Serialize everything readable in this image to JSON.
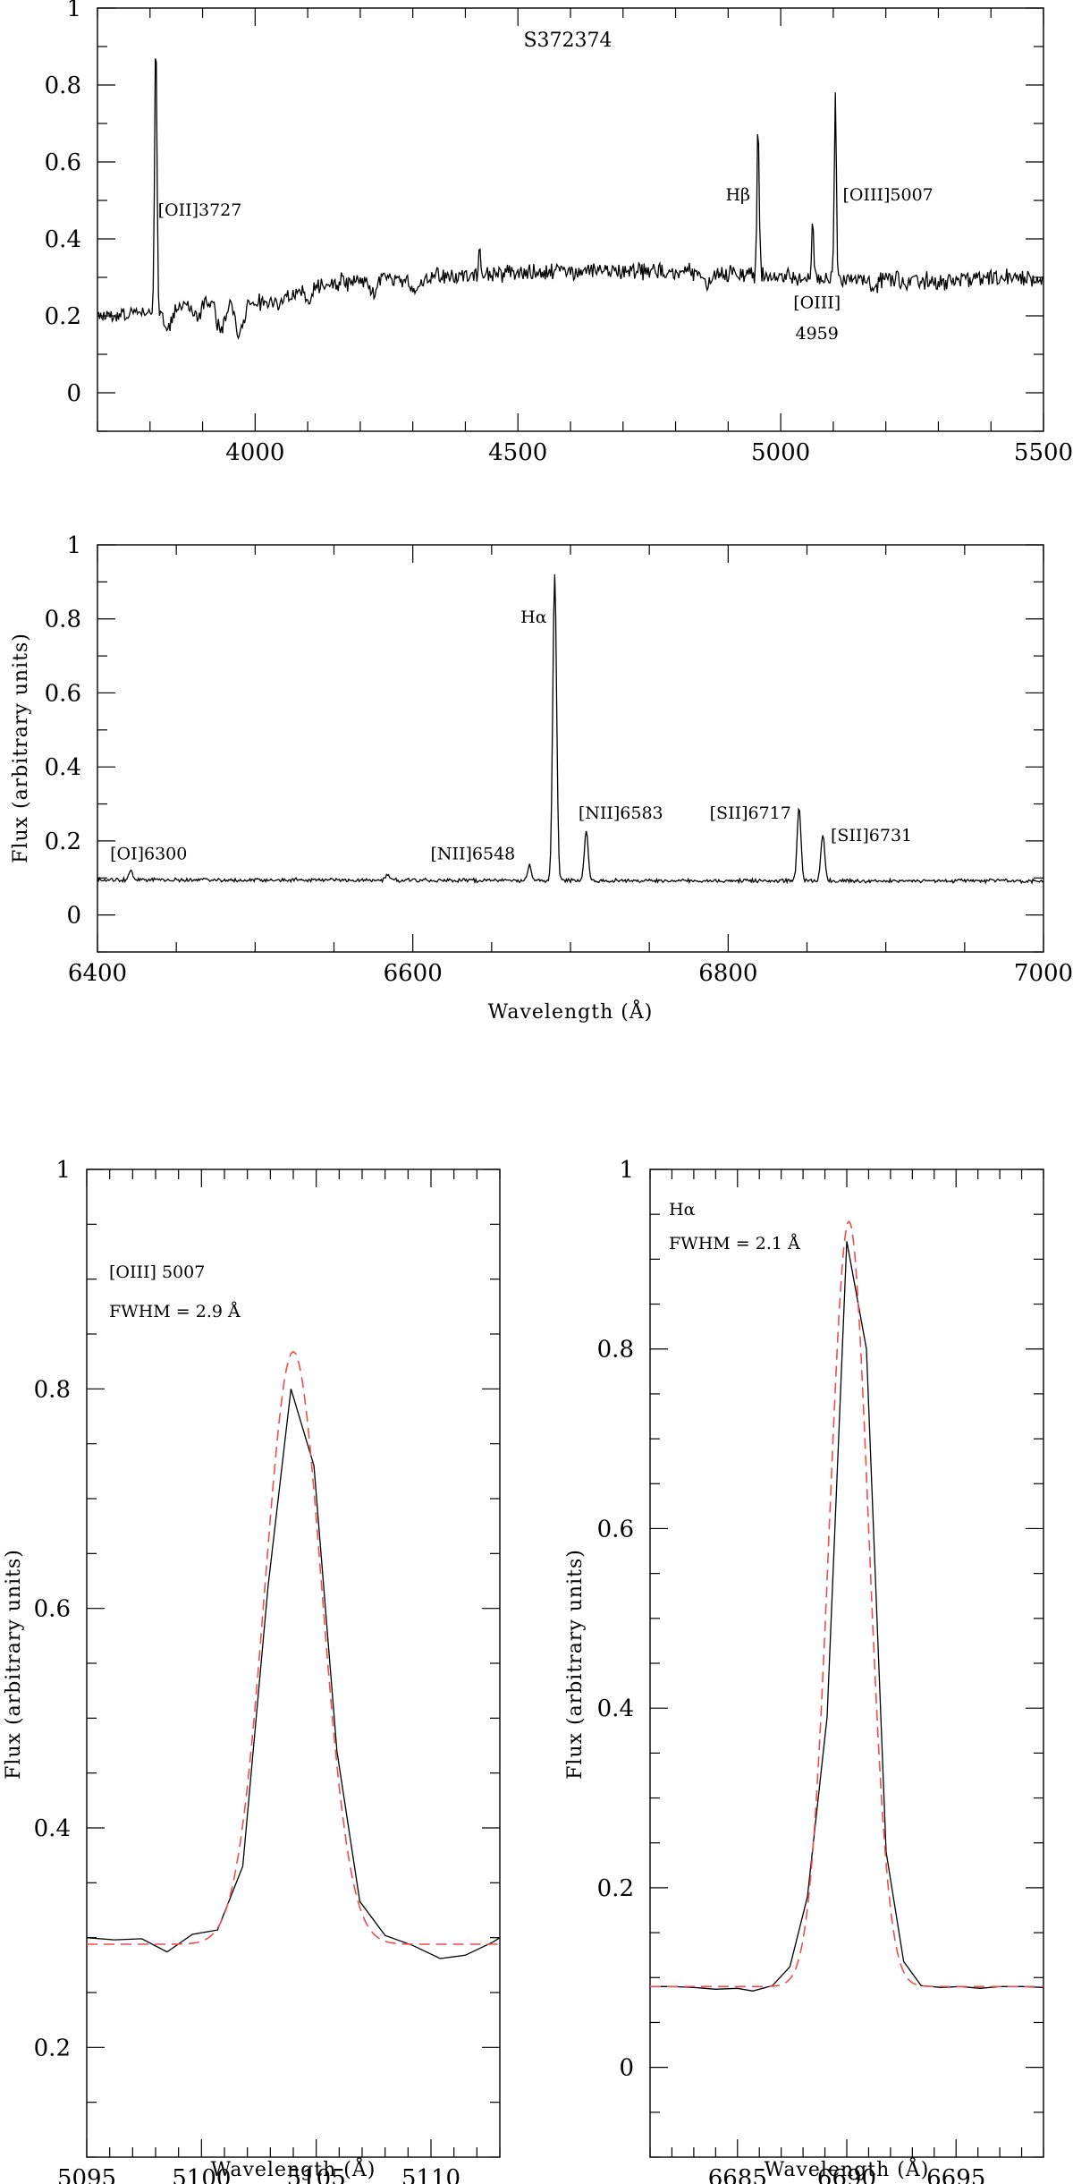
{
  "chart_data": [
    {
      "type": "line",
      "id": "optical-blue",
      "title": "S372374",
      "xlabel": "",
      "ylabel": "",
      "xlim": [
        3700,
        5500
      ],
      "ylim": [
        -0.1,
        1
      ],
      "xticks": [
        4000,
        4500,
        5000,
        5500
      ],
      "yticks": [
        0,
        0.2,
        0.4,
        0.6,
        0.8,
        1
      ],
      "xminor_step": 100,
      "yminor_step": 0.1,
      "continuum": [
        [
          3700,
          0.2
        ],
        [
          3800,
          0.21
        ],
        [
          3900,
          0.24
        ],
        [
          4000,
          0.24
        ],
        [
          4050,
          0.23
        ],
        [
          4100,
          0.28
        ],
        [
          4300,
          0.3
        ],
        [
          4500,
          0.31
        ],
        [
          4700,
          0.32
        ],
        [
          4900,
          0.31
        ],
        [
          5000,
          0.3
        ],
        [
          5100,
          0.3
        ],
        [
          5300,
          0.29
        ],
        [
          5500,
          0.3
        ]
      ],
      "absorptions": [
        [
          3835,
          0.05,
          8
        ],
        [
          3889,
          0.04,
          8
        ],
        [
          3934,
          0.08,
          8
        ],
        [
          3970,
          0.08,
          8
        ],
        [
          4102,
          0.03,
          8
        ],
        [
          4227,
          0.03,
          6
        ],
        [
          4305,
          0.03,
          10
        ],
        [
          4861,
          0.025,
          8
        ],
        [
          5175,
          0.02,
          10
        ]
      ],
      "emissions": [
        [
          3811,
          0.95,
          2.2
        ],
        [
          4427,
          0.38,
          1.4
        ],
        [
          4957,
          0.69,
          2.2
        ],
        [
          5061,
          0.46,
          1.8
        ],
        [
          5104,
          0.8,
          1.9
        ]
      ],
      "noise": 0.018,
      "labels": [
        {
          "text": "[OII]3727",
          "x": 3815,
          "y": 0.46,
          "anchor": "start"
        },
        {
          "text": "Hβ",
          "x": 4942,
          "y": 0.5,
          "anchor": "end"
        },
        {
          "text": "[OIII]5007",
          "x": 5118,
          "y": 0.5,
          "anchor": "start"
        },
        {
          "text": "[OIII]",
          "x": 5069,
          "y": 0.22,
          "anchor": "middle"
        },
        {
          "text": "4959",
          "x": 5069,
          "y": 0.14,
          "anchor": "middle"
        }
      ]
    },
    {
      "type": "line",
      "id": "optical-red",
      "title": "",
      "xlabel": "Wavelength (Å)",
      "ylabel": "Flux (arbitrary units)",
      "xlim": [
        6400,
        7000
      ],
      "ylim": [
        -0.1,
        1
      ],
      "xticks": [
        6400,
        6600,
        6800,
        7000
      ],
      "yticks": [
        0,
        0.2,
        0.4,
        0.6,
        0.8,
        1
      ],
      "xminor_step": 50,
      "yminor_step": 0.1,
      "continuum": [
        [
          6400,
          0.095
        ],
        [
          6700,
          0.093
        ],
        [
          7000,
          0.092
        ]
      ],
      "absorptions": [],
      "emissions": [
        [
          6421,
          0.12,
          1.2
        ],
        [
          6674,
          0.135,
          1.2
        ],
        [
          6690,
          0.925,
          1.2
        ],
        [
          6710,
          0.23,
          1.2
        ],
        [
          6845,
          0.29,
          1.2
        ],
        [
          6860,
          0.22,
          1.2
        ],
        [
          6584,
          0.11,
          1.2
        ]
      ],
      "noise": 0.004,
      "labels": [
        {
          "text": "[OI]6300",
          "x": 6408,
          "y": 0.15,
          "anchor": "start"
        },
        {
          "text": "[NII]6548",
          "x": 6665,
          "y": 0.15,
          "anchor": "end"
        },
        {
          "text": "Hα",
          "x": 6685,
          "y": 0.79,
          "anchor": "end"
        },
        {
          "text": "[NII]6583",
          "x": 6705,
          "y": 0.26,
          "anchor": "start"
        },
        {
          "text": "[SII]6717",
          "x": 6840,
          "y": 0.26,
          "anchor": "end"
        },
        {
          "text": "[SII]6731",
          "x": 6865,
          "y": 0.2,
          "anchor": "start"
        }
      ]
    },
    {
      "type": "line",
      "id": "zoom-oiii",
      "title": "",
      "xlabel": "Wavelength (Å)",
      "ylabel": "Flux (arbitrary units)",
      "xlim": [
        5095,
        5113
      ],
      "ylim": [
        0.1,
        1
      ],
      "xticks": [
        5095,
        5100,
        5105,
        5110
      ],
      "yticks": [
        0.2,
        0.4,
        0.6,
        0.8,
        1
      ],
      "xminor_step": 1,
      "yminor_step": 0.05,
      "annotation": [
        "[OIII] 5007",
        "FWHM = 2.9 Å"
      ],
      "series": [
        {
          "name": "",
          "style": "solid",
          "color": "#000000",
          "x": [
            5095.0,
            5096.2,
            5097.4,
            5098.5,
            5099.6,
            5100.7,
            5101.8,
            5102.9,
            5103.9,
            5104.9,
            5105.9,
            5106.9,
            5108.0,
            5109.2,
            5110.4,
            5111.5,
            5112.7,
            5113.0
          ],
          "y": [
            0.3,
            0.298,
            0.299,
            0.287,
            0.303,
            0.307,
            0.365,
            0.62,
            0.8,
            0.73,
            0.47,
            0.333,
            0.302,
            0.293,
            0.281,
            0.284,
            0.296,
            0.3
          ]
        },
        {
          "name": "",
          "style": "dashed",
          "color": "#ee4e4e",
          "gauss": {
            "center": 5104.0,
            "sigma": 1.23,
            "amp": 0.54,
            "base": 0.294,
            "from": 5095,
            "to": 5113,
            "step": 0.1
          }
        }
      ]
    },
    {
      "type": "line",
      "id": "zoom-halpha",
      "title": "",
      "xlabel": "Wavelength (Å)",
      "ylabel": "Flux (arbitrary units)",
      "xlim": [
        6681,
        6699
      ],
      "ylim": [
        -0.1,
        1
      ],
      "xticks": [
        6685,
        6690,
        6695
      ],
      "yticks": [
        0,
        0.2,
        0.4,
        0.6,
        0.8,
        1
      ],
      "xminor_step": 1,
      "yminor_step": 0.05,
      "annotation": [
        "Hα",
        "FWHM = 2.1 Å"
      ],
      "series": [
        {
          "name": "",
          "style": "solid",
          "color": "#000000",
          "x": [
            6681,
            6682,
            6683,
            6684,
            6685,
            6685.7,
            6686.6,
            6687.4,
            6688.2,
            6689.1,
            6690.0,
            6690.9,
            6691.8,
            6692.6,
            6693.4,
            6694.3,
            6695.2,
            6696.1,
            6697.0,
            6698.0,
            6699.0
          ],
          "y": [
            0.09,
            0.09,
            0.089,
            0.087,
            0.088,
            0.085,
            0.091,
            0.112,
            0.19,
            0.39,
            0.92,
            0.8,
            0.24,
            0.118,
            0.091,
            0.089,
            0.09,
            0.088,
            0.09,
            0.09,
            0.089
          ]
        },
        {
          "name": "",
          "style": "dashed",
          "color": "#ee4e4e",
          "gauss": {
            "center": 6690.1,
            "sigma": 0.89,
            "amp": 0.852,
            "base": 0.09,
            "from": 6681,
            "to": 6699,
            "step": 0.05
          }
        }
      ]
    }
  ]
}
